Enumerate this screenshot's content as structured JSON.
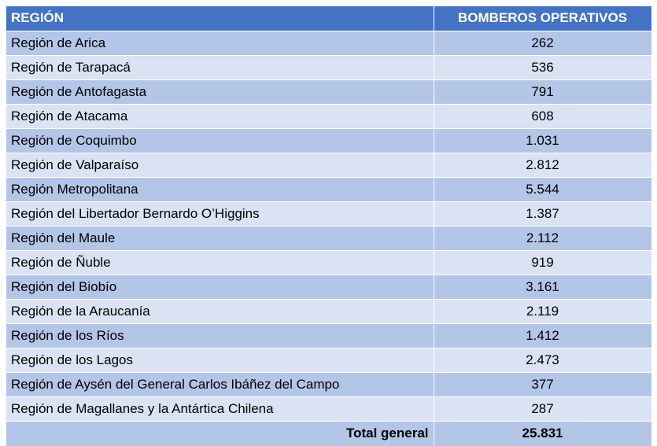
{
  "table": {
    "headers": {
      "region": "REGIÓN",
      "value": "BOMBEROS OPERATIVOS"
    },
    "rows": [
      {
        "region": "Región de Arica",
        "value": "262"
      },
      {
        "region": "Región de Tarapacá",
        "value": "536"
      },
      {
        "region": "Región de Antofagasta",
        "value": "791"
      },
      {
        "region": "Región de Atacama",
        "value": "608"
      },
      {
        "region": "Región de Coquimbo",
        "value": "1.031"
      },
      {
        "region": "Región de Valparaíso",
        "value": "2.812"
      },
      {
        "region": "Región Metropolitana",
        "value": "5.544"
      },
      {
        "region": "Región del Libertador Bernardo O’Higgins",
        "value": "1.387"
      },
      {
        "region": "Región del Maule",
        "value": "2.112"
      },
      {
        "region": "Región de Ñuble",
        "value": "919"
      },
      {
        "region": "Región del Biobío",
        "value": "3.161"
      },
      {
        "region": "Región de la Araucanía",
        "value": "2.119"
      },
      {
        "region": "Región de los Ríos",
        "value": "1.412"
      },
      {
        "region": "Región de los Lagos",
        "value": "2.473"
      },
      {
        "region": "Región de Aysén del General Carlos Ibáñez del Campo",
        "value": "377"
      },
      {
        "region": "Región de Magallanes y la Antártica Chilena",
        "value": "287"
      }
    ],
    "total": {
      "label": "Total general",
      "value": "25.831"
    }
  },
  "colors": {
    "header": "#4472c4",
    "row_odd": "#b4c6e7",
    "row_even": "#dae3f3"
  }
}
